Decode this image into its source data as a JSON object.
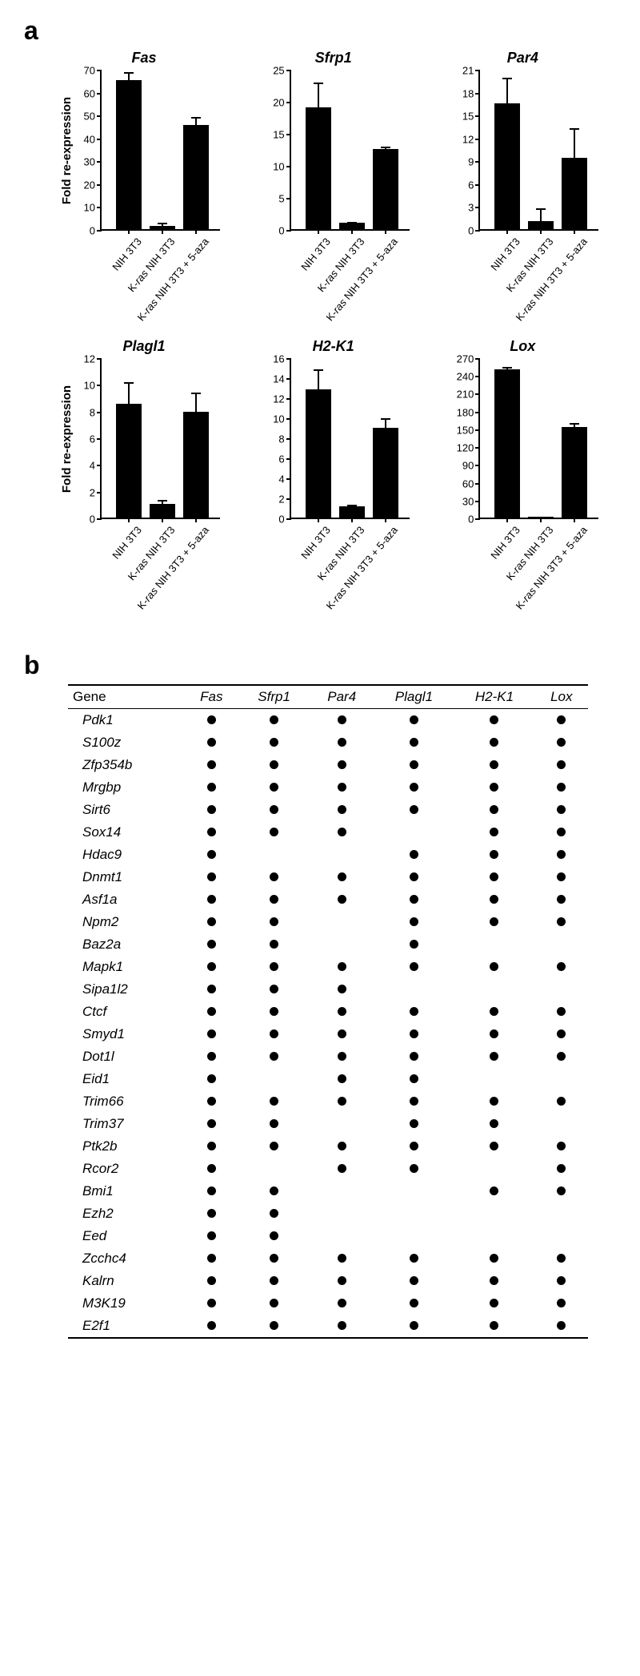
{
  "panel_a_label": "a",
  "panel_b_label": "b",
  "y_axis_label": "Fold re-expression",
  "x_labels": [
    "NIH 3T3",
    "K-ras NIH 3T3",
    "K-ras NIH 3T3 + 5-aza"
  ],
  "bar_color": "#000000",
  "charts": [
    {
      "title": "Fas",
      "ylim": [
        0,
        70
      ],
      "ytick_step": 10,
      "values": [
        65,
        1.5,
        45.5
      ],
      "errors": [
        4,
        1.5,
        4
      ],
      "show_ylabel": true
    },
    {
      "title": "Sfrp1",
      "ylim": [
        0,
        25
      ],
      "ytick_step": 5,
      "values": [
        19,
        1,
        12.5
      ],
      "errors": [
        4,
        0.3,
        0.5
      ],
      "show_ylabel": false
    },
    {
      "title": "Par4",
      "ylim": [
        0,
        21
      ],
      "ytick_step": 3,
      "values": [
        16.5,
        1,
        9.3
      ],
      "errors": [
        3.5,
        1.8,
        4
      ],
      "show_ylabel": false
    },
    {
      "title": "Plagl1",
      "ylim": [
        0,
        12
      ],
      "ytick_step": 2,
      "values": [
        8.5,
        1,
        7.9
      ],
      "errors": [
        1.7,
        0.4,
        1.5
      ],
      "show_ylabel": true
    },
    {
      "title": "H2-K1",
      "ylim": [
        0,
        16
      ],
      "ytick_step": 2,
      "values": [
        12.8,
        1.1,
        9
      ],
      "errors": [
        2.1,
        0.3,
        1
      ],
      "show_ylabel": false
    },
    {
      "title": "Lox",
      "ylim": [
        0,
        270
      ],
      "ytick_step": 30,
      "values": [
        250,
        2,
        152
      ],
      "errors": [
        5,
        1,
        8
      ],
      "show_ylabel": false
    }
  ],
  "table": {
    "header_first": "Gene",
    "columns": [
      "Fas",
      "Sfrp1",
      "Par4",
      "Plagl1",
      "H2-K1",
      "Lox"
    ],
    "rows": [
      {
        "g": "Pdk1",
        "d": [
          1,
          1,
          1,
          1,
          1,
          1
        ]
      },
      {
        "g": "S100z",
        "d": [
          1,
          1,
          1,
          1,
          1,
          1
        ]
      },
      {
        "g": "Zfp354b",
        "d": [
          1,
          1,
          1,
          1,
          1,
          1
        ]
      },
      {
        "g": "Mrgbp",
        "d": [
          1,
          1,
          1,
          1,
          1,
          1
        ]
      },
      {
        "g": "Sirt6",
        "d": [
          1,
          1,
          1,
          1,
          1,
          1
        ]
      },
      {
        "g": "Sox14",
        "d": [
          1,
          1,
          1,
          0,
          1,
          1
        ]
      },
      {
        "g": "Hdac9",
        "d": [
          1,
          0,
          0,
          1,
          1,
          1
        ]
      },
      {
        "g": "Dnmt1",
        "d": [
          1,
          1,
          1,
          1,
          1,
          1
        ]
      },
      {
        "g": "Asf1a",
        "d": [
          1,
          1,
          1,
          1,
          1,
          1
        ]
      },
      {
        "g": "Npm2",
        "d": [
          1,
          1,
          0,
          1,
          1,
          1
        ]
      },
      {
        "g": "Baz2a",
        "d": [
          1,
          1,
          0,
          1,
          0,
          0
        ]
      },
      {
        "g": "Mapk1",
        "d": [
          1,
          1,
          1,
          1,
          1,
          1
        ]
      },
      {
        "g": "Sipa1l2",
        "d": [
          1,
          1,
          1,
          0,
          0,
          0
        ]
      },
      {
        "g": "Ctcf",
        "d": [
          1,
          1,
          1,
          1,
          1,
          1
        ]
      },
      {
        "g": "Smyd1",
        "d": [
          1,
          1,
          1,
          1,
          1,
          1
        ]
      },
      {
        "g": "Dot1l",
        "d": [
          1,
          1,
          1,
          1,
          1,
          1
        ]
      },
      {
        "g": "Eid1",
        "d": [
          1,
          0,
          1,
          1,
          0,
          0
        ]
      },
      {
        "g": "Trim66",
        "d": [
          1,
          1,
          1,
          1,
          1,
          1
        ]
      },
      {
        "g": "Trim37",
        "d": [
          1,
          1,
          0,
          1,
          1,
          0
        ]
      },
      {
        "g": "Ptk2b",
        "d": [
          1,
          1,
          1,
          1,
          1,
          1
        ]
      },
      {
        "g": "Rcor2",
        "d": [
          1,
          0,
          1,
          1,
          0,
          1
        ]
      },
      {
        "g": "Bmi1",
        "d": [
          1,
          1,
          0,
          0,
          1,
          1
        ]
      },
      {
        "g": "Ezh2",
        "d": [
          1,
          1,
          0,
          0,
          0,
          0
        ]
      },
      {
        "g": "Eed",
        "d": [
          1,
          1,
          0,
          0,
          0,
          0
        ]
      },
      {
        "g": "Zcchc4",
        "d": [
          1,
          1,
          1,
          1,
          1,
          1
        ]
      },
      {
        "g": "Kalrn",
        "d": [
          1,
          1,
          1,
          1,
          1,
          1
        ]
      },
      {
        "g": "M3K19",
        "d": [
          1,
          1,
          1,
          1,
          1,
          1
        ]
      },
      {
        "g": "E2f1",
        "d": [
          1,
          1,
          1,
          1,
          1,
          1
        ]
      }
    ]
  }
}
